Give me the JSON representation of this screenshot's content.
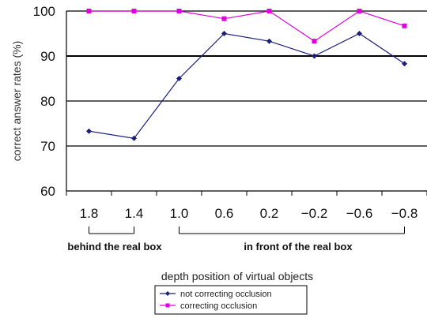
{
  "chart_data": {
    "type": "line",
    "categories": [
      "1.8",
      "1.4",
      "1.0",
      "0.6",
      "0.2",
      "−0.2",
      "−0.6",
      "−0.8"
    ],
    "series": [
      {
        "name": "not correcting occlusion",
        "color": "#1a1f7a",
        "marker": "diamond",
        "values": [
          73.3,
          71.7,
          85.0,
          95.0,
          93.3,
          90.0,
          95.0,
          88.3
        ]
      },
      {
        "name": "correcting occlusion",
        "color": "#e000e0",
        "marker": "square",
        "values": [
          100,
          100,
          100,
          98.3,
          100,
          93.3,
          100,
          96.7
        ]
      }
    ],
    "ylabel": "correct answer rates (%)",
    "xlabel": "depth position of virtual objects",
    "ylim": [
      60,
      100
    ],
    "yticks": [
      60,
      70,
      80,
      90,
      100
    ],
    "grid": "horizontal",
    "group_labels": [
      {
        "text": "behind the real box",
        "from": 0,
        "to": 1
      },
      {
        "text": "in front of the real box",
        "from": 2,
        "to": 7
      }
    ],
    "legend_position": "bottom-center"
  }
}
